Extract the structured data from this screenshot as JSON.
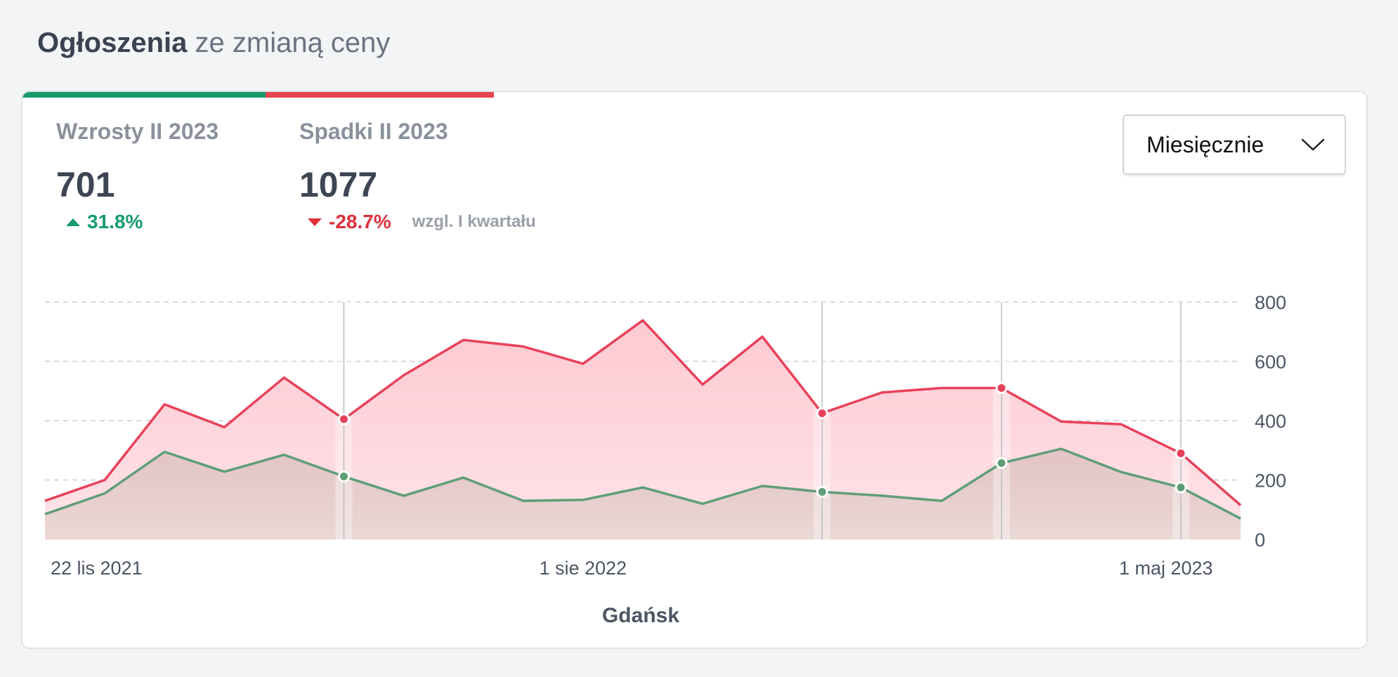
{
  "header": {
    "title_strong": "Ogłoszenia",
    "title_rest": "ze zmianą ceny"
  },
  "stats": {
    "increases": {
      "label": "Wzrosty II 2023",
      "value": "701",
      "change": "31.8%",
      "color": "#169b6b"
    },
    "decreases": {
      "label": "Spadki II 2023",
      "value": "1077",
      "change": "-28.7%",
      "color": "#dc2f3a"
    },
    "compare_note": "wzgl. I kwartału"
  },
  "period_select": {
    "value": "Miesięcznie",
    "icon": "chevron-down-icon"
  },
  "chart_data": {
    "type": "area",
    "xlabel": "Gdańsk",
    "x": [
      "2021-11-22",
      "2021-12-20",
      "2022-01-17",
      "2022-02-14",
      "2022-03-14",
      "2022-04-11",
      "2022-05-09",
      "2022-06-06",
      "2022-07-04",
      "2022-08-01",
      "2022-08-29",
      "2022-09-26",
      "2022-10-24",
      "2022-11-21",
      "2022-12-19",
      "2023-01-16",
      "2023-02-13",
      "2023-03-13",
      "2023-04-10",
      "2023-05-08",
      "2023-06-05"
    ],
    "x_tick_labels": [
      {
        "x": "2021-11-22",
        "label": "22 lis 2021"
      },
      {
        "x": "2022-08-01",
        "label": "1 sie 2022"
      },
      {
        "x": "2023-05-01",
        "label": "1 maj 2023"
      }
    ],
    "y_ticks": [
      0,
      200,
      400,
      600,
      800
    ],
    "ylim": [
      0,
      800
    ],
    "y_axis_position": "right",
    "grid": "horizontal-dashed",
    "series": [
      {
        "key": "decreases",
        "color": "#e8415a",
        "values": [
          130,
          200,
          455,
          378,
          545,
          405,
          553,
          672,
          650,
          592,
          738,
          522,
          683,
          425,
          495,
          510,
          510,
          397,
          388,
          290,
          115
        ]
      },
      {
        "key": "increases",
        "color": "#5f9e76",
        "values": [
          85,
          155,
          295,
          228,
          285,
          212,
          147,
          208,
          130,
          133,
          175,
          120,
          180,
          160,
          147,
          130,
          257,
          305,
          227,
          175,
          70
        ]
      }
    ],
    "highlight_points": [
      "2022-04-11",
      "2022-11-21",
      "2023-02-13",
      "2023-05-08"
    ]
  }
}
